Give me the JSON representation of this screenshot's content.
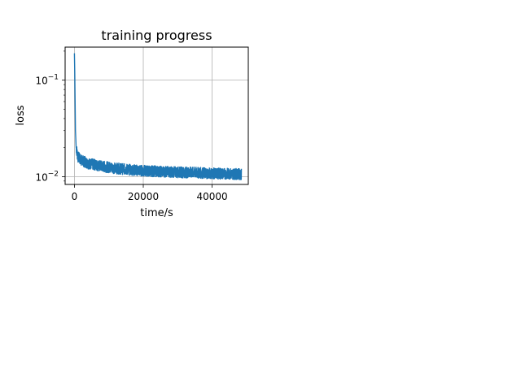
{
  "chart_data": {
    "type": "line",
    "title": "training progress",
    "xlabel": "time/s",
    "ylabel": "loss",
    "yscale": "log",
    "grid": true,
    "xlim": [
      -2700,
      50500
    ],
    "ylim": [
      0.0083,
      0.22
    ],
    "x_ticks": [
      0,
      20000,
      40000
    ],
    "x_tick_labels": [
      "0",
      "20000",
      "40000"
    ],
    "y_ticks": [
      0.01,
      0.1
    ],
    "y_tick_labels": [
      {
        "base": "10",
        "exp": "−2"
      },
      {
        "base": "10",
        "exp": "−1"
      }
    ],
    "series": [
      {
        "color": "#1f77b4",
        "points": [
          [
            0,
            0.19
          ],
          [
            100,
            0.12
          ],
          [
            200,
            0.06
          ],
          [
            300,
            0.03
          ],
          [
            500,
            0.02
          ],
          [
            1000,
            0.016
          ],
          [
            2000,
            0.0148
          ],
          [
            4000,
            0.0137
          ],
          [
            8000,
            0.0128
          ],
          [
            12000,
            0.0122
          ],
          [
            16000,
            0.0118
          ],
          [
            20000,
            0.0115
          ],
          [
            25000,
            0.0113
          ],
          [
            30000,
            0.0111
          ],
          [
            35000,
            0.011
          ],
          [
            40000,
            0.0108
          ],
          [
            45000,
            0.0107
          ],
          [
            48500,
            0.0106
          ]
        ],
        "noise_band_fraction": 0.22
      }
    ]
  }
}
